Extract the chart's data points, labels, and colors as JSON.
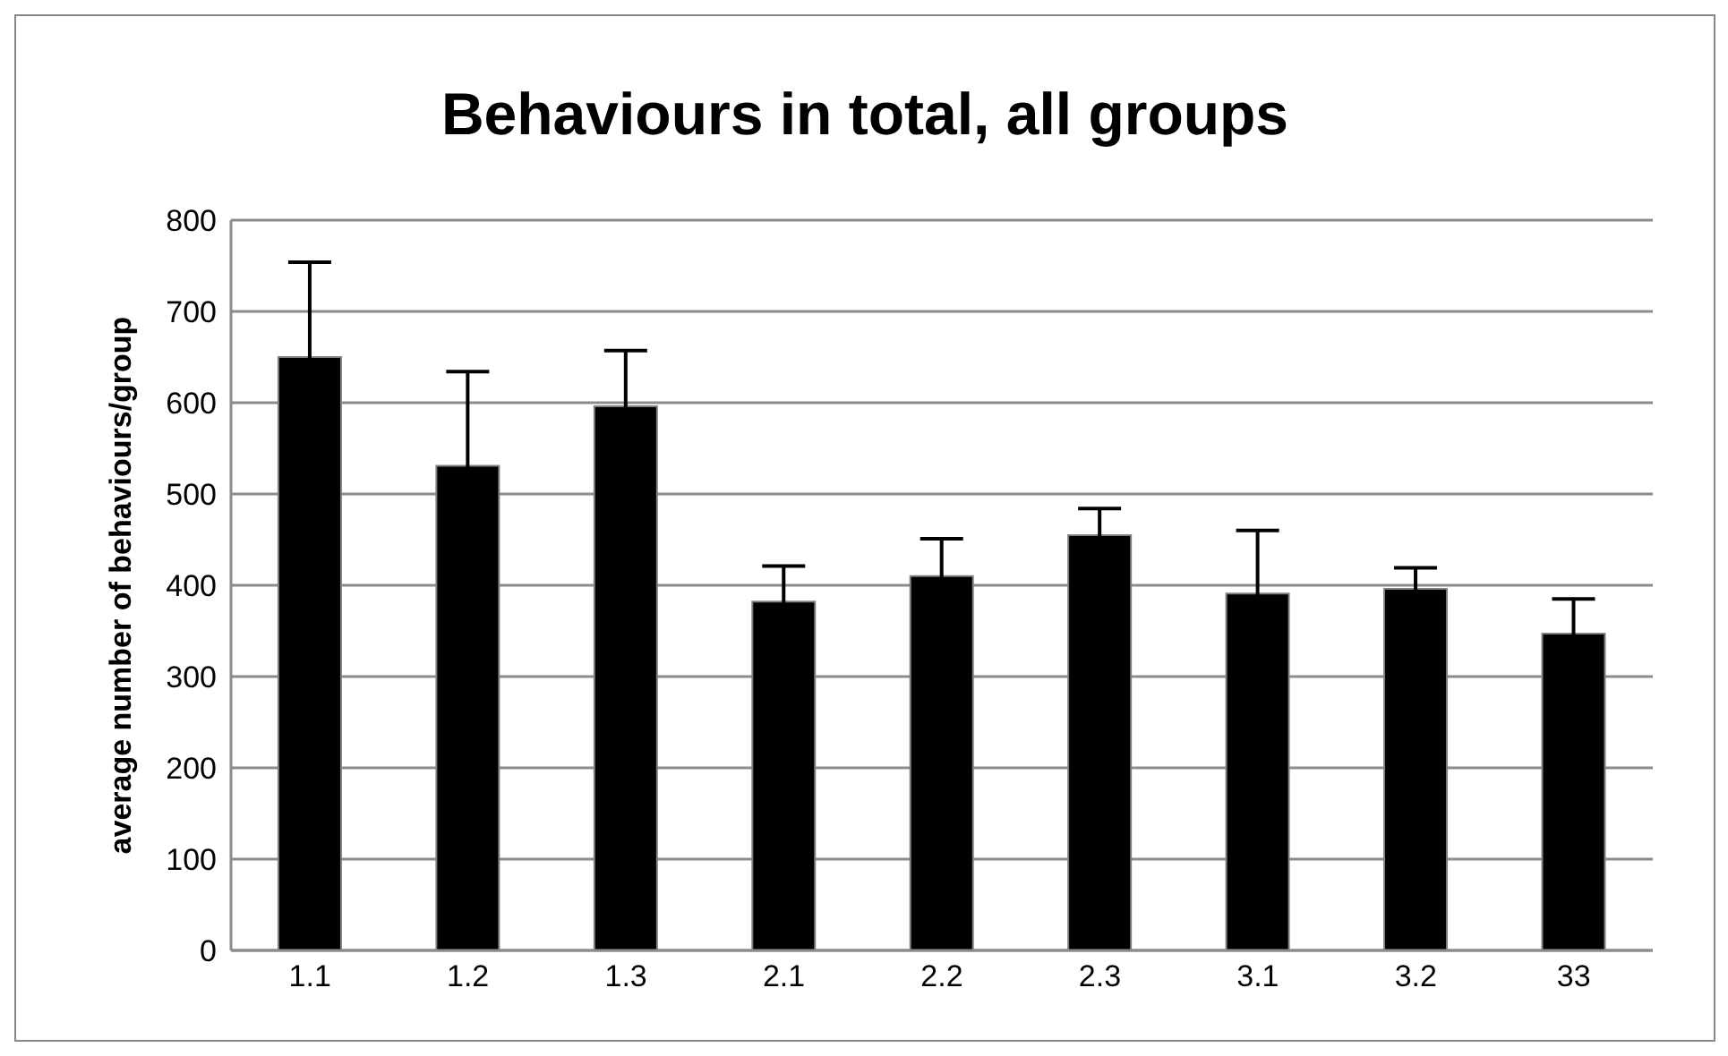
{
  "chart_data": {
    "type": "bar",
    "title": "Behaviours in total, all groups",
    "ylabel": "average number of behaviours/group",
    "categories": [
      "1.1",
      "1.2",
      "1.3",
      "2.1",
      "2.2",
      "2.3",
      "3.1",
      "3.2",
      "33"
    ],
    "values": [
      650,
      531,
      596,
      382,
      410,
      455,
      391,
      396,
      347
    ],
    "errors": [
      104,
      103,
      61,
      39,
      41,
      29,
      69,
      23,
      38
    ],
    "color": "#000000",
    "ylim": [
      0,
      800
    ],
    "yticks": [
      0,
      100,
      200,
      300,
      400,
      500,
      600,
      700,
      800
    ],
    "grid": "y"
  }
}
